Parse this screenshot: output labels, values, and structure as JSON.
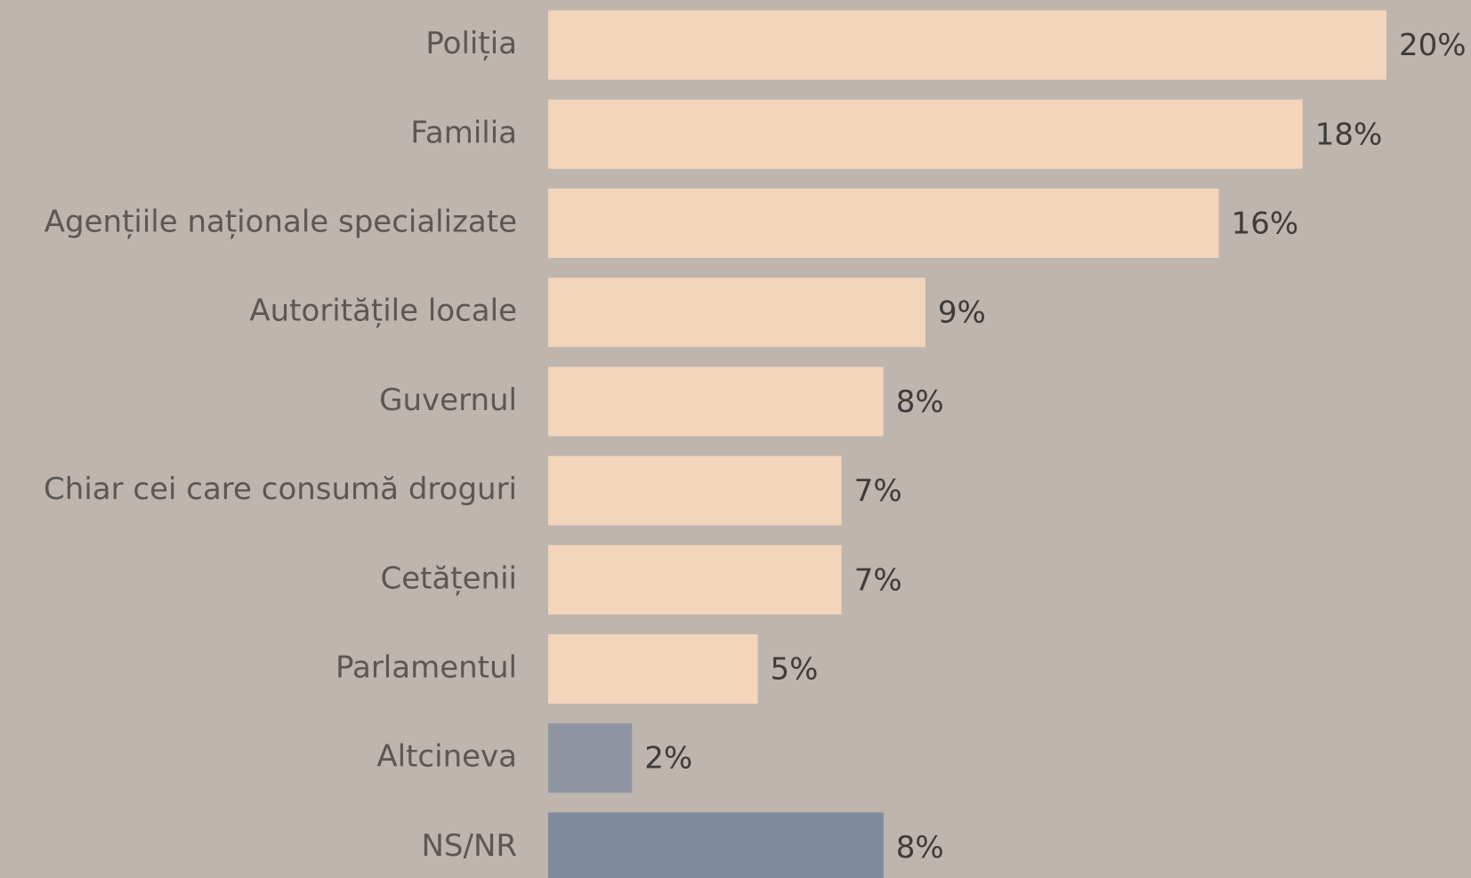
{
  "chart_data": {
    "type": "barh",
    "categories": [
      "Poliția",
      "Familia",
      "Agențiile naționale specializate",
      "Autoritățile locale",
      "Guvernul",
      "Chiar cei care consumă droguri",
      "Cetățenii",
      "Parlamentul",
      "Altcineva",
      "NS/NR"
    ],
    "values": [
      20,
      18,
      16,
      9,
      8,
      7,
      7,
      5,
      2,
      8
    ],
    "value_labels": [
      "20%",
      "18%",
      "16%",
      "9%",
      "8%",
      "7%",
      "7%",
      "5%",
      "2%",
      "8%"
    ],
    "colors": [
      "#f3d5bc",
      "#f3d5bc",
      "#f3d5bc",
      "#f3d5bc",
      "#f3d5bc",
      "#f3d5bc",
      "#f3d5bc",
      "#f3d5bc",
      "#8e94a2",
      "#7f8a9e"
    ]
  }
}
